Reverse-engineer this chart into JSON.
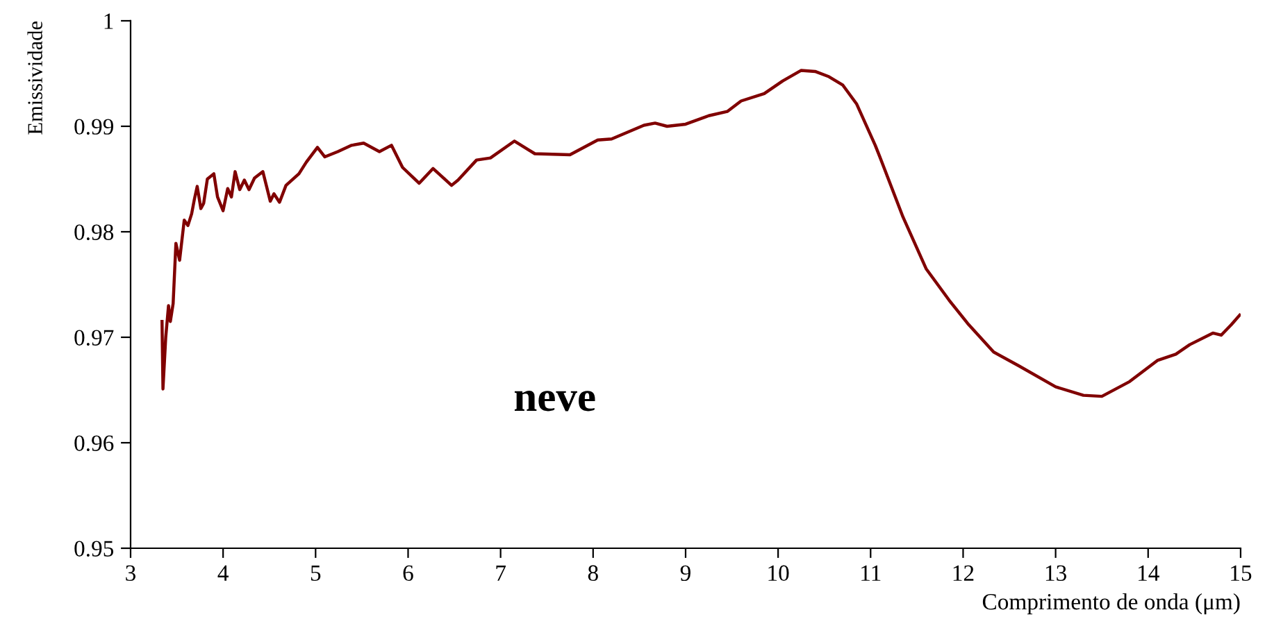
{
  "chart_data": {
    "type": "line",
    "xlabel": "Comprimento de onda (μm)",
    "ylabel": "Emissividade",
    "annotations": [
      "neve"
    ],
    "x": [
      3.34,
      3.35,
      3.38,
      3.41,
      3.43,
      3.46,
      3.49,
      3.53,
      3.58,
      3.62,
      3.66,
      3.69,
      3.72,
      3.76,
      3.79,
      3.83,
      3.9,
      3.94,
      4.0,
      4.05,
      4.09,
      4.13,
      4.18,
      4.23,
      4.28,
      4.34,
      4.43,
      4.51,
      4.55,
      4.61,
      4.68,
      4.82,
      4.9,
      5.02,
      5.1,
      5.24,
      5.39,
      5.52,
      5.69,
      5.82,
      5.94,
      6.12,
      6.27,
      6.47,
      6.54,
      6.74,
      6.89,
      7.15,
      7.37,
      7.75,
      8.05,
      8.2,
      8.55,
      8.67,
      8.8,
      9.0,
      9.25,
      9.45,
      9.6,
      9.85,
      10.05,
      10.25,
      10.4,
      10.55,
      10.7,
      10.85,
      11.05,
      11.1,
      11.35,
      11.6,
      11.85,
      12.05,
      12.33,
      12.6,
      13.0,
      13.3,
      13.5,
      13.8,
      14.1,
      14.3,
      14.45,
      14.7,
      14.79,
      14.9,
      14.99
    ],
    "series": [
      {
        "color": "#800000",
        "values": [
          0.9715,
          0.9651,
          0.97,
          0.973,
          0.9715,
          0.9732,
          0.9789,
          0.9773,
          0.9811,
          0.9806,
          0.9817,
          0.9831,
          0.9843,
          0.9822,
          0.9827,
          0.985,
          0.9855,
          0.9833,
          0.982,
          0.9841,
          0.9833,
          0.9857,
          0.984,
          0.9849,
          0.984,
          0.9851,
          0.9857,
          0.9829,
          0.9836,
          0.9828,
          0.9844,
          0.9855,
          0.9866,
          0.988,
          0.9871,
          0.9876,
          0.9882,
          0.9884,
          0.9876,
          0.9882,
          0.9861,
          0.9846,
          0.986,
          0.9844,
          0.9849,
          0.9868,
          0.987,
          0.9886,
          0.9874,
          0.9873,
          0.9887,
          0.9888,
          0.9901,
          0.9903,
          0.99,
          0.9902,
          0.991,
          0.9914,
          0.9924,
          0.9931,
          0.9943,
          0.9953,
          0.9952,
          0.9947,
          0.9939,
          0.9921,
          0.9882,
          0.9871,
          0.9814,
          0.9765,
          0.9735,
          0.9713,
          0.9686,
          0.9673,
          0.9653,
          0.9645,
          0.9644,
          0.9658,
          0.9678,
          0.9684,
          0.9693,
          0.9704,
          0.9702,
          0.9712,
          0.9721
        ]
      }
    ],
    "xlim": [
      3,
      15
    ],
    "xticks": [
      3,
      4,
      5,
      6,
      7,
      8,
      9,
      10,
      11,
      12,
      13,
      14,
      15
    ],
    "ylim": [
      0.95,
      1
    ],
    "yticks": [
      0.95,
      0.96,
      0.97,
      0.98,
      0.99,
      1
    ],
    "marker": "none",
    "line_style": "solid"
  }
}
